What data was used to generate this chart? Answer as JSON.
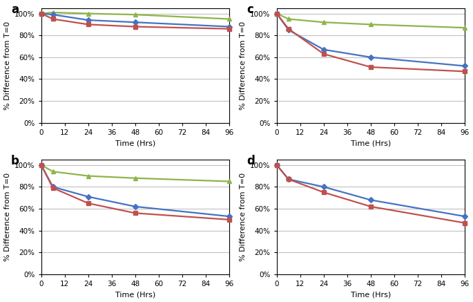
{
  "time_points": [
    0,
    6,
    24,
    48,
    96
  ],
  "panels": {
    "a": {
      "label": "a",
      "green": [
        100,
        101,
        100,
        99,
        95
      ],
      "blue": [
        100,
        99,
        94,
        92,
        88
      ],
      "red": [
        100,
        95,
        90,
        88,
        86
      ]
    },
    "b": {
      "label": "b",
      "green": [
        100,
        94,
        90,
        88,
        85
      ],
      "blue": [
        100,
        80,
        71,
        62,
        53
      ],
      "red": [
        100,
        79,
        65,
        56,
        50
      ]
    },
    "c": {
      "label": "c",
      "green": [
        100,
        95,
        92,
        90,
        87
      ],
      "blue": [
        100,
        85,
        67,
        60,
        52
      ],
      "red": [
        100,
        86,
        63,
        51,
        47
      ]
    },
    "d": {
      "label": "d",
      "green": null,
      "blue": [
        100,
        87,
        80,
        68,
        53
      ],
      "red": [
        100,
        87,
        75,
        62,
        47
      ]
    }
  },
  "colors": {
    "green": "#8DB44A",
    "blue": "#4472C4",
    "red": "#C0504D"
  },
  "marker": {
    "green": "^",
    "blue": "D",
    "red": "s"
  },
  "xlim": [
    0,
    96
  ],
  "xticks": [
    0,
    12,
    24,
    36,
    48,
    60,
    72,
    84,
    96
  ],
  "ylim": [
    0,
    105
  ],
  "yticks": [
    0,
    20,
    40,
    60,
    80,
    100
  ],
  "xlabel": "Time (Hrs)",
  "ylabel": "% Difference from T=0",
  "grid_color": "#C0C0C0",
  "bg_color": "#FFFFFF",
  "linewidth": 1.6,
  "markersize": 4.5
}
